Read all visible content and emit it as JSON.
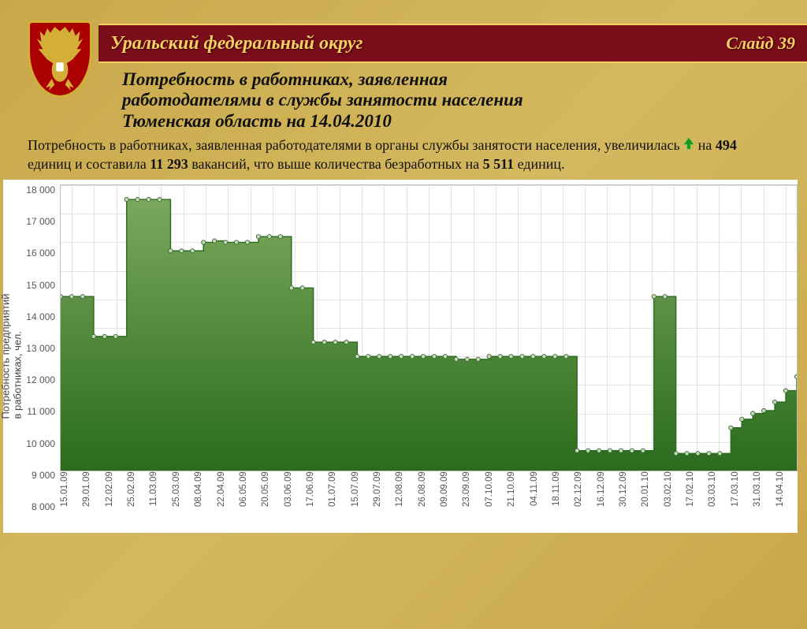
{
  "header": {
    "title": "Уральский федеральный округ",
    "slide": "Слайд 39"
  },
  "subtitle": {
    "line1": "Потребность в работниках, заявленная",
    "line2": "работодателями в службы занятости населения",
    "line3": "Тюменская область на 14.04.2010"
  },
  "body": {
    "t1": "Потребность в работниках, заявленная работодателями в органы службы занятости населения, увеличилась",
    "t2": "на ",
    "b1": "494",
    "t3": " единиц и составила ",
    "b2": "11 293",
    "t4": " вакансий, что выше количества безработных на ",
    "b3": "5 511",
    "t5": " единиц."
  },
  "chart": {
    "type": "area-step",
    "ylabel": "Потребность предприятий\nв работниках, чел.",
    "ymin": 8000,
    "ymax": 18000,
    "ytick_step": 1000,
    "yticks": [
      "18 000",
      "17 000",
      "16 000",
      "15 000",
      "14 000",
      "13 000",
      "12 000",
      "11 000",
      "10 000",
      "9 000",
      "8 000"
    ],
    "x_labels": [
      "15.01.09",
      "29.01.09",
      "12.02.09",
      "25.02.09",
      "11.03.09",
      "25.03.09",
      "08.04.09",
      "22.04.09",
      "06.05.09",
      "20.05.09",
      "03.06.09",
      "17.06.09",
      "01.07.09",
      "15.07.09",
      "29.07.09",
      "12.08.09",
      "26.08.09",
      "09.09.09",
      "23.09.09",
      "07.10.09",
      "21.10.09",
      "04.11.09",
      "18.11.09",
      "02.12.09",
      "16.12.09",
      "30.12.09",
      "20.01.10",
      "03.02.10",
      "17.02.10",
      "03.03.10",
      "17.03.10",
      "31.03.10",
      "14.04.10"
    ],
    "x_label_stride": 1,
    "values": [
      14100,
      14100,
      14100,
      12700,
      12700,
      12700,
      17500,
      17500,
      17500,
      17500,
      15700,
      15700,
      15700,
      16000,
      16050,
      16000,
      16000,
      16000,
      16200,
      16200,
      16200,
      14400,
      14400,
      12500,
      12500,
      12500,
      12500,
      12000,
      12000,
      12000,
      12000,
      12000,
      12000,
      12000,
      12000,
      12000,
      11900,
      11900,
      11900,
      12000,
      12000,
      12000,
      12000,
      12000,
      12000,
      12000,
      12000,
      8700,
      8700,
      8700,
      8700,
      8700,
      8700,
      8700,
      14100,
      14100,
      8600,
      8600,
      8600,
      8600,
      8600,
      9500,
      9800,
      10000,
      10100,
      10400,
      10800,
      11293
    ],
    "area_fill_top": "#7aa85c",
    "area_fill_bottom": "#2a6b1e",
    "line_color": "#2a6b1e",
    "marker_fill": "#c8d8c0",
    "marker_stroke": "#3d6b2f",
    "marker_radius": 2.6,
    "background_color": "#ffffff",
    "grid_color": "#e3e3e3"
  }
}
